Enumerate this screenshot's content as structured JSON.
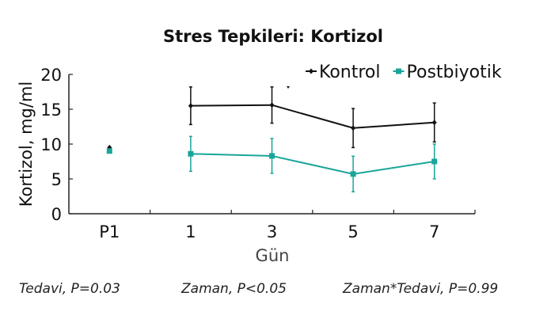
{
  "chart_data": {
    "type": "line",
    "title": "Stres Tepkileri: Kortizol",
    "xlabel": "Gün",
    "ylabel": "Kortizol, mg/ml",
    "categories": [
      "P1",
      "1",
      "3",
      "5",
      "7"
    ],
    "ylim": [
      0,
      20
    ],
    "yticks": [
      0,
      5,
      10,
      15,
      20
    ],
    "grid": false,
    "legend_position": "top-right",
    "series": [
      {
        "name": "Kontrol",
        "color": "#111111",
        "marker": "diamond",
        "values": [
          9.5,
          15.5,
          15.6,
          12.3,
          13.1
        ],
        "errors": [
          null,
          2.7,
          2.6,
          2.8,
          2.8
        ],
        "connected_from_index": 1
      },
      {
        "name": "Postbiyotik",
        "color": "#1aa59a",
        "marker": "square",
        "values": [
          9.0,
          8.6,
          8.3,
          5.7,
          7.5
        ],
        "errors": [
          null,
          2.5,
          2.5,
          2.55,
          2.5
        ],
        "connected_from_index": 1
      }
    ],
    "annotations": [
      "Tedavi, P=0.03",
      "Zaman, P<0.05",
      "Zaman*Tedavi, P=0.99"
    ]
  }
}
